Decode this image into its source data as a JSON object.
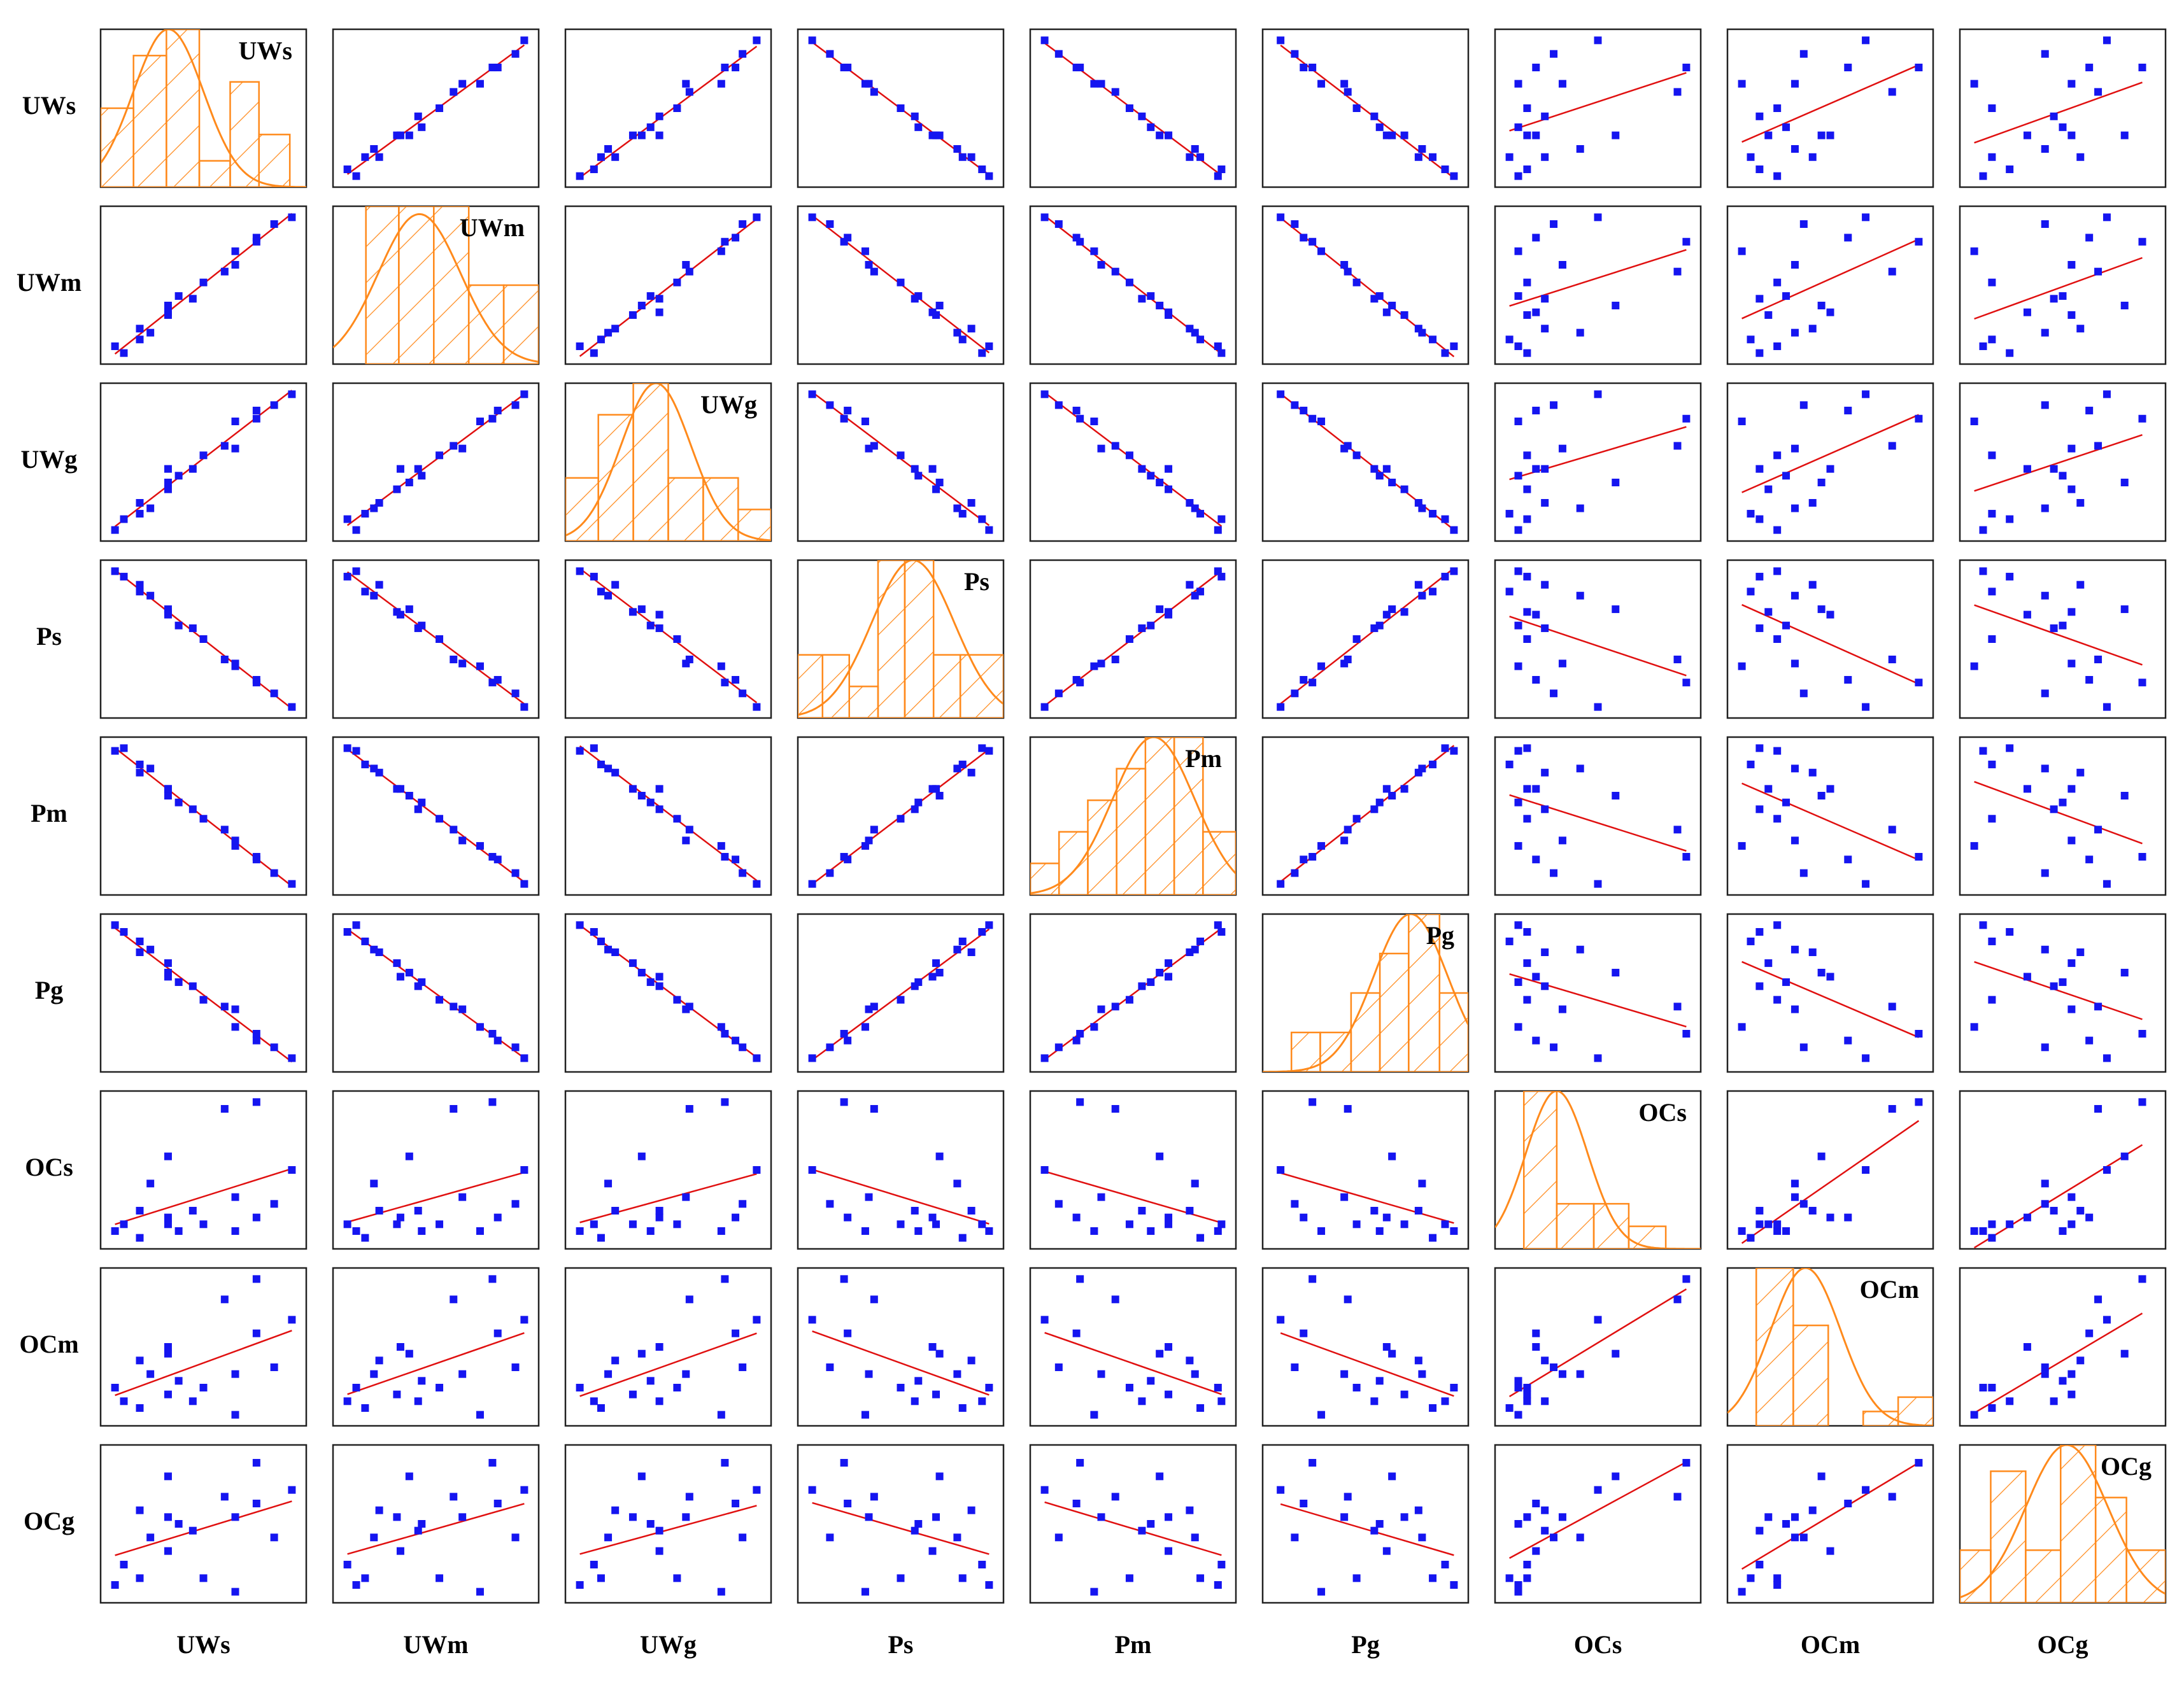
{
  "chart_data": {
    "type": "scatter-matrix",
    "marker_color": "#1515f0",
    "fit_color": "#e01010",
    "hist_color": "#ff8a1c",
    "xlim": [
      0,
      1
    ],
    "ylim": [
      0,
      1
    ],
    "series": [
      {
        "name": "UWs",
        "values": [
          0.0,
          0.05,
          0.14,
          0.14,
          0.2,
          0.3,
          0.3,
          0.3,
          0.36,
          0.44,
          0.5,
          0.62,
          0.68,
          0.68,
          0.8,
          0.8,
          0.9,
          1.0
        ],
        "hist": {
          "bins": [
            0,
            0.16,
            0.32,
            0.48,
            0.63,
            0.77,
            0.92
          ],
          "counts": [
            3,
            5,
            6,
            1,
            4,
            2
          ],
          "ylim": [
            0,
            6
          ],
          "curve_mean": 0.33,
          "curve_sd": 0.17,
          "curve_peak": 6
        }
      },
      {
        "name": "UWm",
        "values": [
          0.05,
          0.0,
          0.1,
          0.18,
          0.15,
          0.28,
          0.35,
          0.3,
          0.42,
          0.4,
          0.52,
          0.6,
          0.75,
          0.65,
          0.85,
          0.82,
          0.95,
          1.0
        ],
        "hist": {
          "bins": [
            0.16,
            0.32,
            0.49,
            0.66,
            0.83,
            1.0
          ],
          "counts": [
            4,
            4,
            4,
            2,
            2
          ],
          "ylim": [
            0,
            4
          ],
          "curve_mean": 0.42,
          "curve_sd": 0.2,
          "curve_peak": 3.8
        }
      },
      {
        "name": "UWg",
        "values": [
          0.0,
          0.08,
          0.12,
          0.2,
          0.16,
          0.3,
          0.35,
          0.45,
          0.4,
          0.45,
          0.55,
          0.62,
          0.8,
          0.6,
          0.88,
          0.82,
          0.92,
          1.0
        ],
        "hist": {
          "bins": [
            0,
            0.16,
            0.33,
            0.5,
            0.67,
            0.84,
            1.0
          ],
          "counts": [
            2,
            4,
            5,
            2,
            2,
            1
          ],
          "ylim": [
            0,
            5
          ],
          "curve_mean": 0.44,
          "curve_sd": 0.17,
          "curve_peak": 5
        }
      },
      {
        "name": "Ps",
        "values": [
          1.0,
          0.96,
          0.85,
          0.9,
          0.82,
          0.7,
          0.72,
          0.68,
          0.6,
          0.58,
          0.5,
          0.35,
          0.3,
          0.32,
          0.2,
          0.18,
          0.1,
          0.0
        ],
        "hist": {
          "bins": [
            0,
            0.12,
            0.25,
            0.39,
            0.52,
            0.66,
            0.79,
            1.0
          ],
          "counts": [
            2,
            2,
            1,
            5,
            5,
            2,
            2
          ],
          "ylim": [
            0,
            5
          ],
          "curve_mean": 0.56,
          "curve_sd": 0.2,
          "curve_peak": 5
        }
      },
      {
        "name": "Pm",
        "values": [
          0.98,
          1.0,
          0.88,
          0.82,
          0.85,
          0.7,
          0.65,
          0.7,
          0.6,
          0.55,
          0.48,
          0.4,
          0.28,
          0.32,
          0.18,
          0.2,
          0.08,
          0.0
        ],
        "hist": {
          "bins": [
            0,
            0.14,
            0.28,
            0.42,
            0.56,
            0.7,
            0.84,
            1.0
          ],
          "counts": [
            1,
            2,
            3,
            4,
            5,
            5,
            2
          ],
          "ylim": [
            0,
            5
          ],
          "curve_mean": 0.6,
          "curve_sd": 0.2,
          "curve_peak": 5
        }
      },
      {
        "name": "Pg",
        "values": [
          1.0,
          0.95,
          0.88,
          0.8,
          0.82,
          0.72,
          0.65,
          0.62,
          0.58,
          0.55,
          0.45,
          0.4,
          0.25,
          0.38,
          0.15,
          0.2,
          0.1,
          0.02
        ],
        "hist": {
          "bins": [
            0.14,
            0.28,
            0.43,
            0.57,
            0.71,
            0.86,
            1.0
          ],
          "counts": [
            1,
            1,
            2,
            3,
            4,
            2
          ],
          "ylim": [
            0,
            4
          ],
          "curve_mean": 0.72,
          "curve_sd": 0.18,
          "curve_peak": 4
        }
      },
      {
        "name": "OCs",
        "values": [
          0.05,
          0.1,
          0.0,
          0.2,
          0.4,
          0.1,
          0.6,
          0.15,
          0.05,
          0.2,
          0.1,
          0.95,
          0.05,
          0.3,
          0.15,
          1.0,
          0.25,
          0.5
        ],
        "hist": {
          "bins": [
            0.14,
            0.3,
            0.48,
            0.65,
            0.83
          ],
          "counts": [
            7,
            2,
            2,
            1
          ],
          "ylim": [
            0,
            7
          ],
          "curve_mean": 0.3,
          "curve_sd": 0.15,
          "curve_peak": 7
        }
      },
      {
        "name": "OCm",
        "values": [
          0.2,
          0.1,
          0.05,
          0.4,
          0.3,
          0.15,
          0.45,
          0.5,
          0.25,
          0.1,
          0.2,
          0.85,
          0.0,
          0.3,
          0.6,
          1.0,
          0.35,
          0.7
        ],
        "hist": {
          "bins": [
            0.14,
            0.32,
            0.49,
            0.66,
            0.83,
            1.0
          ],
          "counts": [
            11,
            7,
            0,
            1,
            2
          ],
          "ylim": [
            0,
            11
          ],
          "curve_mean": 0.38,
          "curve_sd": 0.17,
          "curve_peak": 11
        }
      },
      {
        "name": "OCg",
        "values": [
          0.05,
          0.2,
          0.1,
          0.6,
          0.4,
          0.55,
          0.85,
          0.3,
          0.5,
          0.45,
          0.1,
          0.7,
          0.0,
          0.55,
          0.65,
          0.95,
          0.4,
          0.75
        ],
        "hist": {
          "bins": [
            0,
            0.15,
            0.32,
            0.49,
            0.66,
            0.81,
            1.0
          ],
          "counts": [
            2,
            5,
            2,
            6,
            4,
            2
          ],
          "ylim": [
            0,
            6
          ],
          "curve_mean": 0.52,
          "curve_sd": 0.2,
          "curve_peak": 6
        }
      }
    ]
  }
}
